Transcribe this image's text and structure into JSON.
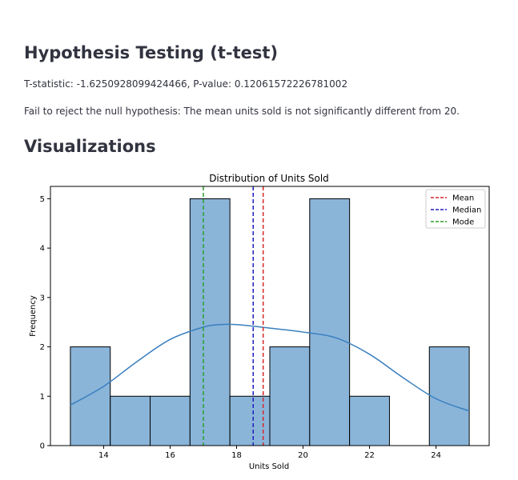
{
  "section1": {
    "heading": "Hypothesis Testing (t-test)",
    "stats_line": "T-statistic: -1.6250928099424466, P-value: 0.12061572226781002",
    "conclusion": "Fail to reject the null hypothesis: The mean units sold is not significantly different from 20."
  },
  "section2": {
    "heading": "Visualizations"
  },
  "chart_data": {
    "type": "bar",
    "title": "Distribution of Units Sold",
    "xlabel": "Units Sold",
    "ylabel": "Frequency",
    "xlim": [
      12.4,
      25.6
    ],
    "ylim": [
      0,
      5.25
    ],
    "xticks": [
      14,
      16,
      18,
      20,
      22,
      24
    ],
    "yticks": [
      0,
      1,
      2,
      3,
      4,
      5
    ],
    "bins": [
      {
        "start": 13.0,
        "end": 14.2,
        "count": 2
      },
      {
        "start": 14.2,
        "end": 15.4,
        "count": 1
      },
      {
        "start": 15.4,
        "end": 16.6,
        "count": 1
      },
      {
        "start": 16.6,
        "end": 17.8,
        "count": 5
      },
      {
        "start": 17.8,
        "end": 19.0,
        "count": 1
      },
      {
        "start": 19.0,
        "end": 20.2,
        "count": 2
      },
      {
        "start": 20.2,
        "end": 21.4,
        "count": 5
      },
      {
        "start": 21.4,
        "end": 22.6,
        "count": 1
      },
      {
        "start": 22.6,
        "end": 23.8,
        "count": 0
      },
      {
        "start": 23.8,
        "end": 25.0,
        "count": 2
      }
    ],
    "kde": {
      "x": [
        13.0,
        14.0,
        15.0,
        16.0,
        17.0,
        17.5,
        18.0,
        19.0,
        20.0,
        21.0,
        22.0,
        23.0,
        24.0,
        25.0
      ],
      "y": [
        0.82,
        1.2,
        1.7,
        2.15,
        2.4,
        2.45,
        2.45,
        2.38,
        2.3,
        2.18,
        1.85,
        1.38,
        0.95,
        0.7
      ]
    },
    "lines": [
      {
        "name": "Mean",
        "x": 18.8,
        "color": "#d62728"
      },
      {
        "name": "Median",
        "x": 18.5,
        "color": "#1f1fbf"
      },
      {
        "name": "Mode",
        "x": 17.0,
        "color": "#2ca02c"
      }
    ],
    "legend_position": "top-right",
    "bar_color": "#8ab5d9",
    "kde_color": "#3a7fbf",
    "grid": false
  }
}
